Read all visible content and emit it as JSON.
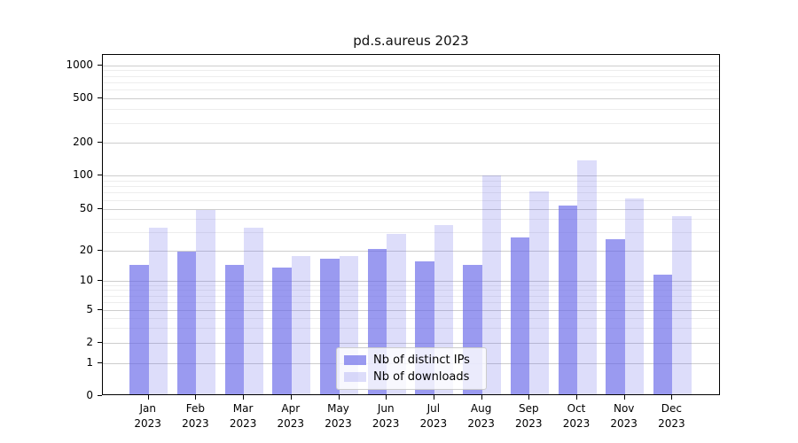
{
  "chart_data": {
    "type": "bar",
    "title": "pd.s.aureus 2023",
    "x_tick_year": "2023",
    "categories": [
      "Jan",
      "Feb",
      "Mar",
      "Apr",
      "May",
      "Jun",
      "Jul",
      "Aug",
      "Sep",
      "Oct",
      "Nov",
      "Dec"
    ],
    "series": [
      {
        "name": "Nb of distinct IPs",
        "values": [
          14,
          19,
          14,
          13,
          16,
          20,
          15,
          14,
          26,
          52,
          25,
          11
        ]
      },
      {
        "name": "Nb of downloads",
        "values": [
          32,
          47,
          32,
          17,
          17,
          28,
          34,
          96,
          69,
          132,
          60,
          41
        ]
      }
    ],
    "y_axis": {
      "scale": "symlog",
      "tick_values": [
        0,
        1,
        2,
        5,
        10,
        20,
        50,
        100,
        200,
        500,
        1000
      ],
      "minor_tick_values": [
        3,
        4,
        6,
        7,
        8,
        9,
        30,
        40,
        60,
        70,
        80,
        90,
        300,
        400,
        600,
        700,
        800,
        900
      ],
      "ylim": [
        0,
        1242
      ],
      "grid": "on"
    },
    "legend": {
      "position": "lower center",
      "labels": [
        "Nb of distinct IPs",
        "Nb of downloads"
      ]
    },
    "colors": {
      "bar_base": "#6464e8",
      "ips_alpha": 0.65,
      "downloads_alpha": 0.22,
      "grid_major": "#cdcdcd",
      "grid_minor": "#ededed",
      "spine": "#000000",
      "text": "#000000"
    }
  }
}
